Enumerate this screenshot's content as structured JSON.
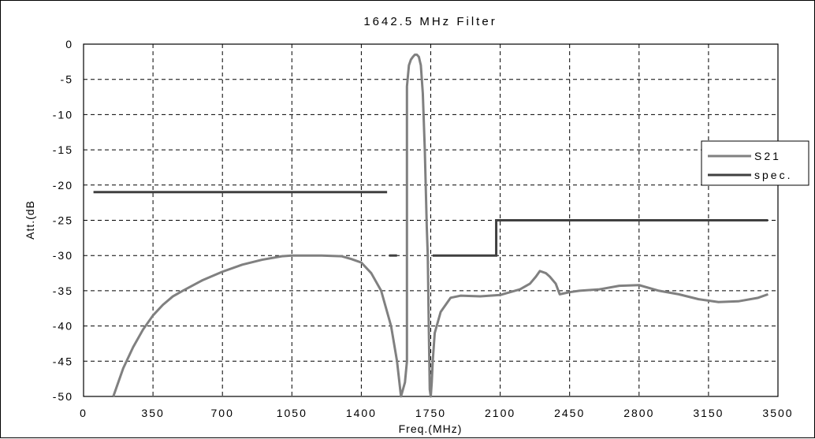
{
  "chart_data": {
    "type": "line",
    "title": "1642.5 MHz Filter",
    "xlabel": "Freq.(MHz)",
    "ylabel": "Att.(dB",
    "xlim": [
      0,
      3500
    ],
    "ylim": [
      -50,
      0
    ],
    "x_ticks": [
      0,
      350,
      700,
      1050,
      1400,
      1750,
      2100,
      2450,
      2800,
      3150,
      3500
    ],
    "y_ticks": [
      0,
      -5,
      -10,
      -15,
      -20,
      -25,
      -30,
      -35,
      -40,
      -45,
      -50
    ],
    "grid": true,
    "legend_position": "right",
    "series": [
      {
        "name": "S21",
        "color": "#808080",
        "x": [
          150,
          200,
          250,
          300,
          350,
          400,
          450,
          500,
          600,
          700,
          800,
          900,
          1000,
          1050,
          1100,
          1200,
          1300,
          1350,
          1400,
          1450,
          1500,
          1550,
          1580,
          1600,
          1620,
          1630,
          1630,
          1640,
          1650,
          1660,
          1670,
          1680,
          1690,
          1700,
          1710,
          1720,
          1730,
          1735,
          1740,
          1745,
          1750,
          1755,
          1760,
          1770,
          1800,
          1850,
          1900,
          2000,
          2100,
          2150,
          2200,
          2250,
          2280,
          2300,
          2330,
          2350,
          2380,
          2400,
          2450,
          2500,
          2600,
          2700,
          2800,
          2900,
          3000,
          3100,
          3200,
          3300,
          3400,
          3450
        ],
        "y": [
          -50,
          -46,
          -43,
          -40.5,
          -38.5,
          -37,
          -35.8,
          -35,
          -33.5,
          -32.3,
          -31.3,
          -30.6,
          -30.1,
          -30,
          -30,
          -30,
          -30.1,
          -30.5,
          -31,
          -32.5,
          -35,
          -40,
          -45,
          -50,
          -48,
          -45,
          -6,
          -3,
          -2.2,
          -1.8,
          -1.5,
          -1.5,
          -1.8,
          -3,
          -7,
          -15,
          -26,
          -30,
          -40,
          -49,
          -50,
          -48,
          -45,
          -41,
          -38,
          -36,
          -35.7,
          -35.8,
          -35.6,
          -35.2,
          -34.8,
          -34,
          -33,
          -32.2,
          -32.5,
          -33,
          -34,
          -35.5,
          -35.2,
          -35,
          -34.8,
          -34.3,
          -34.2,
          -35,
          -35.5,
          -36.2,
          -36.6,
          -36.5,
          -36,
          -35.5
        ]
      },
      {
        "name": "spec.",
        "color": "#404040",
        "segments": [
          {
            "x": [
              50,
              1530
            ],
            "y": [
              -21,
              -21
            ]
          },
          {
            "x": [
              1540,
              1580
            ],
            "y": [
              -30,
              -30
            ]
          },
          {
            "x": [
              1760,
              2080,
              2080,
              3450
            ],
            "y": [
              -30,
              -30,
              -25,
              -25
            ]
          }
        ]
      }
    ]
  }
}
